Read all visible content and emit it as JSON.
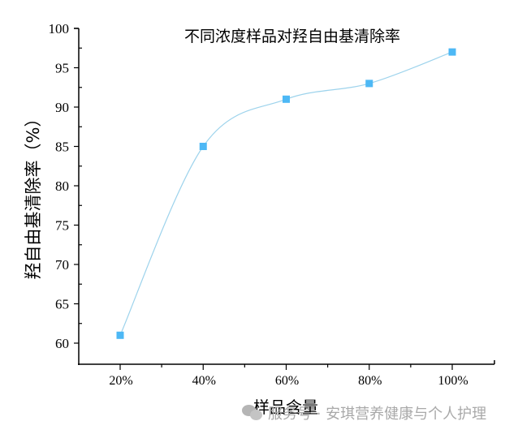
{
  "chart_data": {
    "type": "line",
    "title": "不同浓度样品对羟自由基清除率",
    "xlabel": "样品含量",
    "ylabel": "羟自由基清除率（%）",
    "categories": [
      "20%",
      "40%",
      "60%",
      "80%",
      "100%"
    ],
    "series": [
      {
        "name": "羟自由基清除率",
        "values": [
          61,
          85,
          91,
          93,
          97
        ],
        "marker": "square",
        "smooth": true
      }
    ],
    "ylim": [
      58,
      100
    ],
    "yticks": [
      60,
      65,
      70,
      75,
      80,
      85,
      90,
      95,
      100
    ],
    "grid": false,
    "legend": null
  },
  "colors": {
    "marker": "#4db8f5",
    "line": "#9dd3ec",
    "axis": "#000000"
  },
  "watermark": {
    "icon": "wechat-icon",
    "text": "服务号 · 安琪营养健康与个人护理"
  }
}
